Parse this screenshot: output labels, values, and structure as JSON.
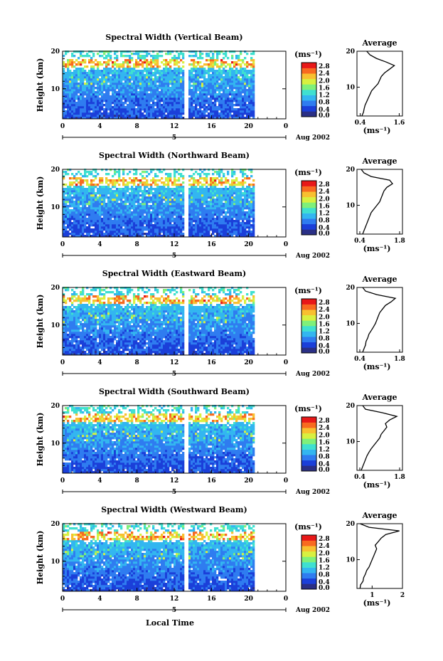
{
  "figure": {
    "x_axis_title": "Local Time",
    "date_label": "Aug 2002",
    "day_label": "5",
    "x_ticks": [
      "0",
      "4",
      "8",
      "12",
      "16",
      "20",
      "0"
    ],
    "y_label": "Height (km)",
    "y_ticks": [
      "20",
      "10"
    ],
    "colorbar_unit": "(ms⁻¹)",
    "colorbar_ticks": [
      "2.8",
      "2.4",
      "2.0",
      "1.6",
      "1.2",
      "0.8",
      "0.4",
      "0.0"
    ],
    "colors": {
      "scale": [
        "#2a2f86",
        "#1b3fd9",
        "#2f7cf0",
        "#33b6f0",
        "#3fe0d0",
        "#7ff07a",
        "#d8f040",
        "#f8c030",
        "#f86a20",
        "#e81818"
      ],
      "background": "#ffffff",
      "gap": "#ffffff"
    }
  },
  "chart_data": [
    {
      "type": "heatmap",
      "title": "Spectral Width (Vertical Beam)",
      "xlim": [
        0,
        24
      ],
      "ylim": [
        2,
        20
      ],
      "colorbar_range": [
        0,
        3.0
      ],
      "data_gap_hours": [
        13.0,
        13.3
      ],
      "data_end_hour": 20.5,
      "profile": {
        "title": "Average",
        "xlabel": "(ms⁻¹)",
        "xticks": [
          "0.4",
          "1.6"
        ],
        "xlim": [
          0.3,
          1.7
        ],
        "yticks": [
          "20",
          "10"
        ],
        "height_km": [
          2,
          3,
          4,
          5,
          6,
          7,
          8,
          9,
          10,
          11,
          12,
          13,
          14,
          15,
          16,
          17,
          18,
          19,
          20
        ],
        "width": [
          0.45,
          0.5,
          0.52,
          0.55,
          0.6,
          0.65,
          0.7,
          0.75,
          0.85,
          0.95,
          1.0,
          1.05,
          1.15,
          1.3,
          1.45,
          1.2,
          0.9,
          0.7,
          0.6
        ]
      }
    },
    {
      "type": "heatmap",
      "title": "Spectral Width (Northward Beam)",
      "xlim": [
        0,
        24
      ],
      "ylim": [
        2,
        20
      ],
      "colorbar_range": [
        0,
        3.0
      ],
      "data_gap_hours": [
        13.0,
        13.3
      ],
      "data_end_hour": 20.5,
      "profile": {
        "title": "Average",
        "xlabel": "(ms⁻¹)",
        "xticks": [
          "0.4",
          "1.8"
        ],
        "xlim": [
          0.3,
          1.9
        ],
        "yticks": [
          "20",
          "10"
        ],
        "height_km": [
          2,
          3,
          4,
          5,
          6,
          7,
          8,
          9,
          10,
          11,
          12,
          13,
          14,
          15,
          16,
          17,
          18,
          19,
          20
        ],
        "width": [
          0.5,
          0.55,
          0.6,
          0.65,
          0.7,
          0.75,
          0.8,
          0.9,
          1.0,
          1.1,
          1.15,
          1.2,
          1.25,
          1.35,
          1.55,
          1.45,
          0.8,
          0.55,
          0.45
        ]
      }
    },
    {
      "type": "heatmap",
      "title": "Spectral Width (Eastward Beam)",
      "xlim": [
        0,
        24
      ],
      "ylim": [
        2,
        20
      ],
      "colorbar_range": [
        0,
        3.0
      ],
      "data_gap_hours": [
        13.0,
        13.3
      ],
      "data_end_hour": 20.5,
      "profile": {
        "title": "Average",
        "xlabel": "(ms⁻¹)",
        "xticks": [
          "0.4",
          "1.8"
        ],
        "xlim": [
          0.3,
          1.9
        ],
        "yticks": [
          "20",
          "10"
        ],
        "height_km": [
          2,
          3,
          4,
          5,
          6,
          7,
          8,
          9,
          10,
          11,
          12,
          13,
          14,
          15,
          16,
          17,
          18,
          19,
          20
        ],
        "width": [
          0.5,
          0.55,
          0.6,
          0.62,
          0.68,
          0.72,
          0.8,
          0.88,
          0.95,
          1.0,
          1.05,
          1.1,
          1.2,
          1.3,
          1.5,
          1.65,
          1.0,
          0.6,
          0.5
        ]
      }
    },
    {
      "type": "heatmap",
      "title": "Spectral Width (Southward Beam)",
      "xlim": [
        0,
        24
      ],
      "ylim": [
        2,
        20
      ],
      "colorbar_range": [
        0,
        3.0
      ],
      "data_gap_hours": [
        13.0,
        13.3
      ],
      "data_end_hour": 20.5,
      "profile": {
        "title": "Average",
        "xlabel": "(ms⁻¹)",
        "xticks": [
          "0.4",
          "1.8"
        ],
        "xlim": [
          0.3,
          1.9
        ],
        "yticks": [
          "20",
          "10"
        ],
        "height_km": [
          2,
          3,
          4,
          5,
          6,
          7,
          8,
          9,
          10,
          11,
          12,
          13,
          14,
          15,
          16,
          17,
          18,
          19,
          20
        ],
        "width": [
          0.45,
          0.5,
          0.55,
          0.6,
          0.65,
          0.72,
          0.8,
          0.9,
          1.0,
          1.1,
          1.15,
          1.25,
          1.35,
          1.3,
          1.45,
          1.7,
          1.2,
          0.6,
          0.5
        ]
      }
    },
    {
      "type": "heatmap",
      "title": "Spectral Width (Westward Beam)",
      "xlim": [
        0,
        24
      ],
      "ylim": [
        2,
        20
      ],
      "colorbar_range": [
        0,
        3.0
      ],
      "data_gap_hours": [
        13.0,
        13.3
      ],
      "data_end_hour": 20.5,
      "profile": {
        "title": "Average",
        "xlabel": "(ms⁻¹)",
        "xticks": [
          "1",
          "2"
        ],
        "xlim": [
          0.5,
          2.0
        ],
        "yticks": [
          "20",
          "10"
        ],
        "height_km": [
          2,
          3,
          4,
          5,
          6,
          7,
          8,
          9,
          10,
          11,
          12,
          13,
          14,
          15,
          16,
          17,
          18,
          19,
          20
        ],
        "width": [
          0.6,
          0.62,
          0.7,
          0.72,
          0.78,
          0.82,
          0.9,
          0.95,
          1.0,
          1.05,
          1.1,
          1.15,
          1.1,
          1.2,
          1.3,
          1.45,
          1.9,
          0.9,
          0.6
        ]
      }
    }
  ]
}
